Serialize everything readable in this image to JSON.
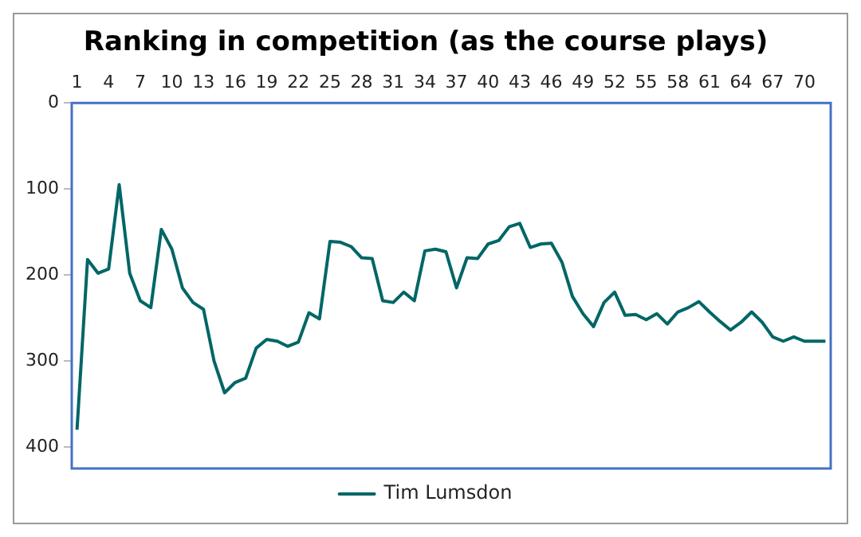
{
  "chart_data": {
    "type": "line",
    "title": "Ranking in competition (as the course plays)",
    "categories": [
      "1",
      null,
      null,
      "4",
      null,
      null,
      "7",
      null,
      null,
      "10",
      null,
      null,
      "13",
      null,
      null,
      "16",
      null,
      null,
      "19",
      null,
      null,
      "22",
      null,
      null,
      "25",
      null,
      null,
      "28",
      null,
      null,
      "31",
      null,
      null,
      "34",
      null,
      null,
      "37",
      null,
      null,
      "40",
      null,
      null,
      "43",
      null,
      null,
      "46",
      null,
      null,
      "49",
      null,
      null,
      "52",
      null,
      null,
      "55",
      null,
      null,
      "58",
      null,
      null,
      "61",
      null,
      null,
      "64",
      null,
      null,
      "67",
      null,
      null,
      "70",
      null,
      null
    ],
    "series": [
      {
        "name": "Tim Lumsdon",
        "color": "#006666",
        "values": [
          380,
          182,
          198,
          193,
          95,
          198,
          230,
          238,
          147,
          170,
          215,
          232,
          240,
          300,
          337,
          325,
          320,
          285,
          275,
          277,
          283,
          278,
          244,
          251,
          161,
          162,
          167,
          180,
          181,
          230,
          232,
          220,
          230,
          172,
          170,
          173,
          215,
          180,
          181,
          164,
          160,
          144,
          140,
          168,
          164,
          163,
          185,
          225,
          245,
          260,
          232,
          220,
          247,
          246,
          252,
          245,
          257,
          243,
          238,
          231,
          243,
          254,
          264,
          255,
          243,
          255,
          272,
          277,
          272,
          277,
          277,
          277
        ]
      }
    ],
    "ylim": [
      425,
      0
    ],
    "yticks": [
      0,
      100,
      200,
      300,
      400
    ],
    "grid": false,
    "legend": "bottom",
    "marker": "none",
    "line_style": "solid"
  }
}
